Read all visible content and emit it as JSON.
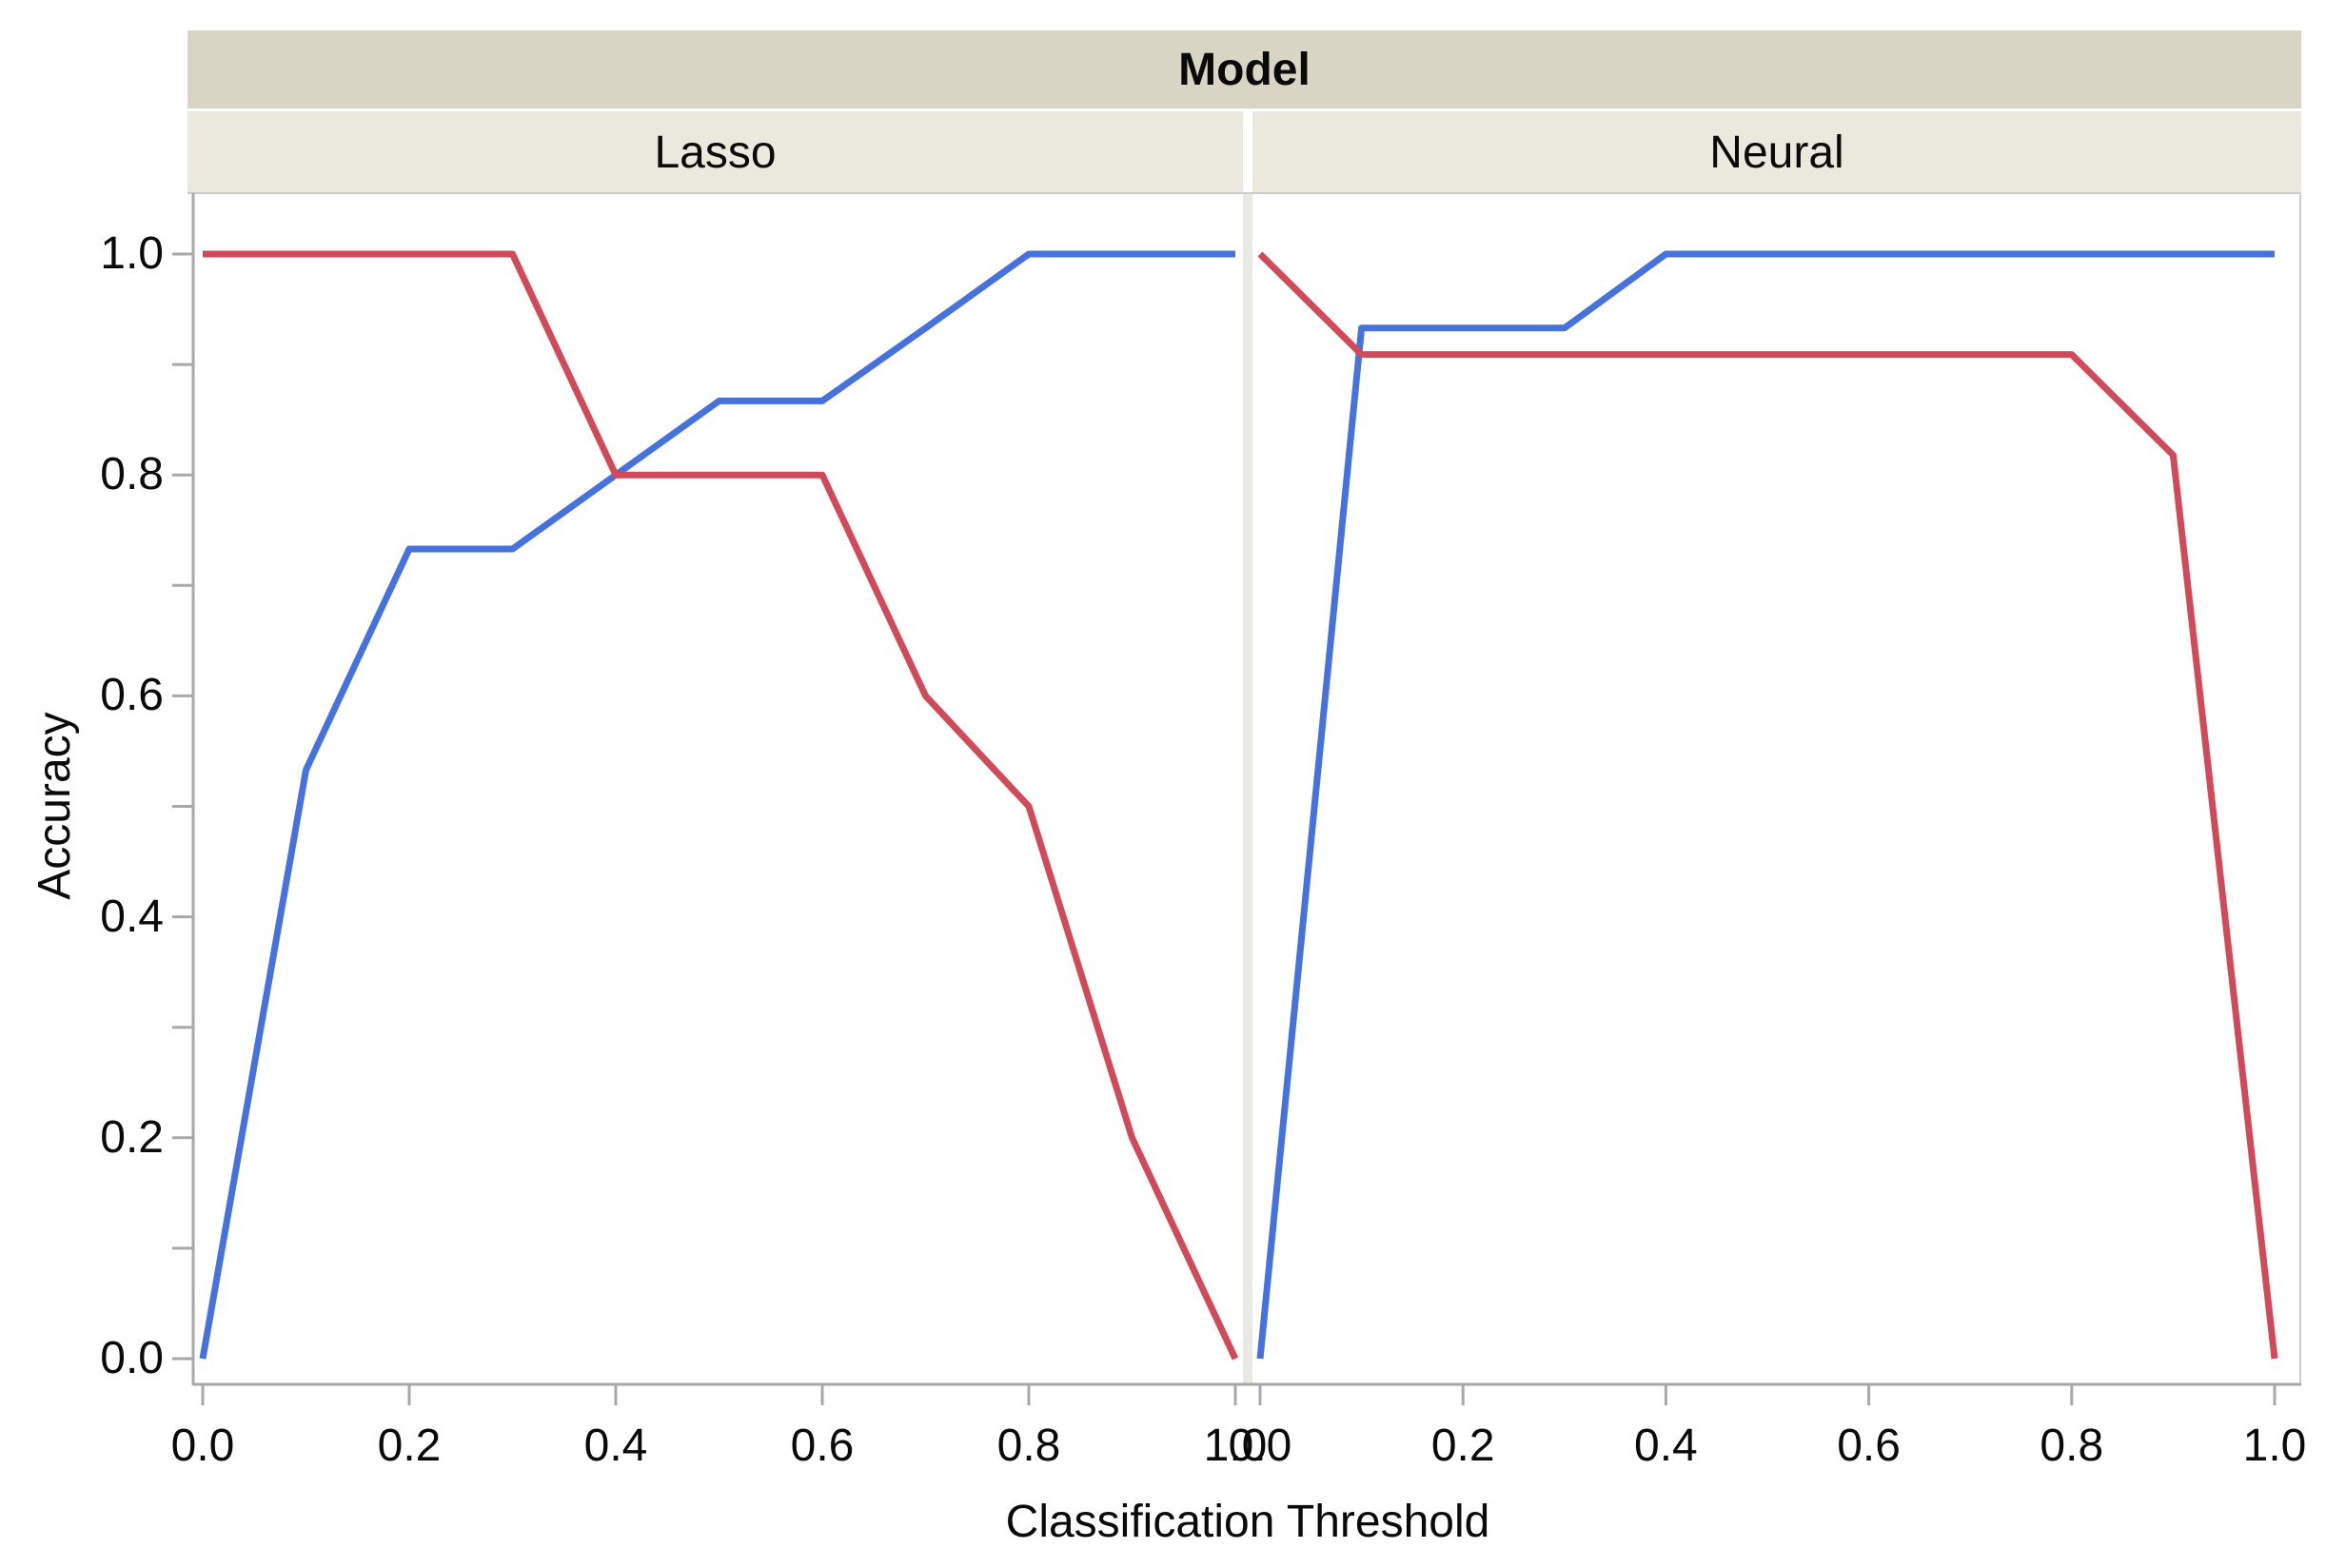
{
  "chart_data": {
    "type": "line",
    "title": "Model",
    "xlabel": "Classification Threshold",
    "ylabel": "Accuracy",
    "xlim": [
      0.0,
      1.0
    ],
    "ylim": [
      0.0,
      1.0
    ],
    "x_major_ticks": [
      0.0,
      0.2,
      0.4,
      0.6,
      0.8,
      1.0
    ],
    "x_tick_labels": [
      "0.0",
      "0.2",
      "0.4",
      "0.6",
      "0.8",
      "1.0"
    ],
    "y_major_ticks": [
      1.0,
      0.8,
      0.6,
      0.4,
      0.2,
      0.0
    ],
    "y_tick_labels": [
      "1.0",
      "0.8",
      "0.6",
      "0.4",
      "0.2",
      "0.0"
    ],
    "y_minor_tick_step": 0.1,
    "grid": "off",
    "legend_position": "none",
    "x": [
      0.0,
      0.1,
      0.2,
      0.3,
      0.4,
      0.5,
      0.6,
      0.7,
      0.8,
      0.9,
      1.0
    ],
    "panels": [
      {
        "label": "Lasso",
        "series": [
          {
            "id": "blue-line",
            "color": "#4672dd",
            "values": [
              0.0,
              0.533,
              0.733,
              0.733,
              0.8,
              0.867,
              0.867,
              0.933,
              1.0,
              1.0,
              1.0
            ]
          },
          {
            "id": "red-line",
            "color": "#d04a5a",
            "values": [
              1.0,
              1.0,
              1.0,
              1.0,
              0.8,
              0.8,
              0.8,
              0.6,
              0.5,
              0.2,
              0.0
            ]
          }
        ]
      },
      {
        "label": "Neural",
        "series": [
          {
            "id": "blue-line",
            "color": "#4672dd",
            "values": [
              0.0,
              0.933,
              0.933,
              0.933,
              1.0,
              1.0,
              1.0,
              1.0,
              1.0,
              1.0,
              1.0
            ]
          },
          {
            "id": "red-line",
            "color": "#d04a5a",
            "values": [
              1.0,
              0.909,
              0.909,
              0.909,
              0.909,
              0.909,
              0.909,
              0.909,
              0.909,
              0.818,
              0.0
            ]
          }
        ]
      }
    ]
  },
  "style": {
    "blue_line": "#4672dd",
    "red_line": "#d04a5a",
    "header_band_bg": "#d9d5c4",
    "column_band_bg": "#ebe9dd",
    "axis_color": "#a8a8a8",
    "border_color": "#cccccc",
    "panel_separator": "#e8e8e5",
    "text_color": "#0a0a0a",
    "plot_bg": "#ffffff"
  }
}
